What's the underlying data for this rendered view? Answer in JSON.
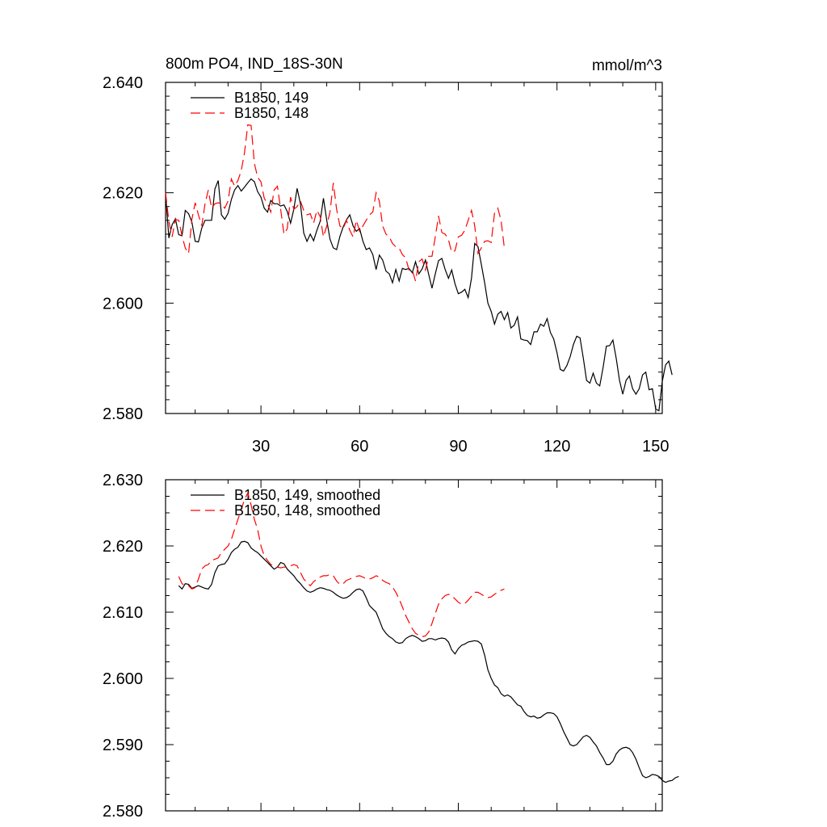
{
  "chart_data": [
    {
      "type": "line",
      "title": "800m PO4, IND_18S-30N",
      "units": "mmol/m^3",
      "xlim": [
        1,
        152
      ],
      "ylim": [
        2.58,
        2.64
      ],
      "xticks": [
        30,
        60,
        90,
        120,
        150
      ],
      "xticklabels": [
        "30",
        "60",
        "90",
        "120",
        "150"
      ],
      "yticks": [
        2.58,
        2.6,
        2.62,
        2.64
      ],
      "yticklabels": [
        "2.580",
        "2.600",
        "2.620",
        "2.640"
      ],
      "grid": false,
      "legend": "top-left",
      "colors": {
        "s149": "#000000",
        "s148": "#ff0000"
      },
      "series": [
        {
          "name": "B1850, 149",
          "x_start": 1,
          "values": [
            2.6198,
            2.6118,
            2.6142,
            2.6153,
            2.6124,
            2.6122,
            2.6168,
            2.6162,
            2.6147,
            2.6112,
            2.6111,
            2.6136,
            2.615,
            2.615,
            2.615,
            2.6207,
            2.6222,
            2.616,
            2.6152,
            2.6163,
            2.6188,
            2.6205,
            2.6213,
            2.6203,
            2.621,
            2.6218,
            2.6225,
            2.622,
            2.6202,
            2.6192,
            2.6172,
            2.6165,
            2.6186,
            2.618,
            2.618,
            2.6176,
            2.6178,
            2.6166,
            2.6145,
            2.617,
            2.6208,
            2.618,
            2.6127,
            2.6112,
            2.6125,
            2.6113,
            2.6132,
            2.6148,
            2.619,
            2.615,
            2.6116,
            2.61,
            2.6097,
            2.6121,
            2.6138,
            2.6151,
            2.616,
            2.614,
            2.613,
            2.6135,
            2.6112,
            2.6097,
            2.61,
            2.6088,
            2.6061,
            2.6087,
            2.6078,
            2.6058,
            2.6053,
            2.6037,
            2.6061,
            2.604,
            2.6063,
            2.6061,
            2.6063,
            2.6055,
            2.6075,
            2.6053,
            2.6062,
            2.6078,
            2.6052,
            2.6027,
            2.6053,
            2.6077,
            2.6081,
            2.6061,
            2.6045,
            2.606,
            2.6035,
            2.6017,
            2.602,
            2.6025,
            2.601,
            2.6045,
            2.6108,
            2.6102,
            2.607,
            2.6037,
            2.6,
            2.5985,
            2.5962,
            2.598,
            2.5985,
            2.597,
            2.5983,
            2.5955,
            2.596,
            2.5975,
            2.5935,
            2.5933,
            2.5932,
            2.5925,
            2.5948,
            2.5948,
            2.5962,
            2.5958,
            2.5972,
            2.5947,
            2.5935,
            2.591,
            2.588,
            2.5877,
            2.5887,
            2.5903,
            2.5925,
            2.594,
            2.5937,
            2.59,
            2.586,
            2.5855,
            2.5873,
            2.5855,
            2.585,
            2.5883,
            2.5922,
            2.5923,
            2.5933,
            2.59,
            2.586,
            2.5835,
            2.586,
            2.5868,
            2.5845,
            2.5835,
            2.5845,
            2.587,
            2.5875,
            2.5843,
            2.5845,
            2.5808,
            2.5805,
            2.5858,
            2.5888,
            2.5895,
            2.587
          ]
        },
        {
          "name": "B1850, 148",
          "x_start": 1,
          "values": [
            2.62,
            2.6148,
            2.612,
            2.6152,
            2.615,
            2.6122,
            2.61,
            2.609,
            2.6152,
            2.6182,
            2.616,
            2.614,
            2.618,
            2.6205,
            2.6172,
            2.618,
            2.6182,
            2.618,
            2.6172,
            2.6185,
            2.6225,
            2.6212,
            2.6222,
            2.624,
            2.6272,
            2.6323,
            2.6322,
            2.6253,
            2.6228,
            2.622,
            2.619,
            2.618,
            2.6165,
            2.6205,
            2.6212,
            2.617,
            2.6125,
            2.6135,
            2.6192,
            2.617,
            2.6175,
            2.6185,
            2.6168,
            2.616,
            2.6162,
            2.6145,
            2.6168,
            2.6157,
            2.612,
            2.614,
            2.6165,
            2.6218,
            2.617,
            2.614,
            2.6135,
            2.615,
            2.6132,
            2.612,
            2.615,
            2.613,
            2.614,
            2.615,
            2.616,
            2.6165,
            2.62,
            2.6185,
            2.614,
            2.6125,
            2.612,
            2.6108,
            2.6102,
            2.61,
            2.6088,
            2.6082,
            2.606,
            2.606,
            2.604,
            2.6075,
            2.608,
            2.606,
            2.6085,
            2.6085,
            2.612,
            2.6158,
            2.6128,
            2.6125,
            2.6115,
            2.6092,
            2.6095,
            2.612,
            2.6123,
            2.6132,
            2.615,
            2.6168,
            2.614,
            2.609,
            2.61,
            2.6112,
            2.6113,
            2.611,
            2.6163,
            2.6172,
            2.615,
            2.61
          ]
        }
      ]
    },
    {
      "type": "line",
      "xlim": [
        1,
        152
      ],
      "ylim": [
        2.58,
        2.63
      ],
      "xticks": [
        30,
        60,
        90,
        120,
        150
      ],
      "yticks": [
        2.58,
        2.59,
        2.6,
        2.61,
        2.62,
        2.63
      ],
      "yticklabels": [
        "2.580",
        "2.590",
        "2.600",
        "2.610",
        "2.620",
        "2.630"
      ],
      "grid": false,
      "legend": "top-left",
      "colors": {
        "s149": "#000000",
        "s148": "#ff0000"
      },
      "series": [
        {
          "name": "B1850, 149, smoothed",
          "x_start": 5,
          "values": [
            2.614,
            2.6135,
            2.6143,
            2.6142,
            2.6136,
            2.6138,
            2.614,
            2.6138,
            2.6136,
            2.6135,
            2.6142,
            2.616,
            2.617,
            2.6172,
            2.6173,
            2.618,
            2.619,
            2.6195,
            2.6198,
            2.6206,
            2.6207,
            2.6205,
            2.6197,
            2.6193,
            2.619,
            2.6185,
            2.618,
            2.6175,
            2.617,
            2.6165,
            2.6168,
            2.6175,
            2.6173,
            2.6165,
            2.616,
            2.6155,
            2.6148,
            2.6143,
            2.6137,
            2.6132,
            2.613,
            2.6132,
            2.6135,
            2.6137,
            2.6136,
            2.6134,
            2.6133,
            2.613,
            2.6126,
            2.6123,
            2.6121,
            2.6122,
            2.6125,
            2.613,
            2.6134,
            2.6135,
            2.6132,
            2.6122,
            2.611,
            2.6105,
            2.61,
            2.6088,
            2.6075,
            2.6068,
            2.6063,
            2.606,
            2.6055,
            2.6053,
            2.6054,
            2.606,
            2.6063,
            2.6065,
            2.6063,
            2.606,
            2.6056,
            2.6057,
            2.606,
            2.606,
            2.6058,
            2.606,
            2.6061,
            2.606,
            2.6055,
            2.6043,
            2.6037,
            2.6045,
            2.605,
            2.6052,
            2.6055,
            2.6056,
            2.6057,
            2.6056,
            2.6052,
            2.6035,
            2.6013,
            2.6,
            2.599,
            2.5986,
            2.5977,
            2.5973,
            2.5975,
            2.5972,
            2.5966,
            2.596,
            2.5958,
            2.595,
            2.5944,
            2.5942,
            2.5943,
            2.594,
            2.5941,
            2.5945,
            2.5948,
            2.5948,
            2.5947,
            2.5942,
            2.5932,
            2.592,
            2.591,
            2.59,
            2.5898,
            2.59,
            2.5906,
            2.5912,
            2.5914,
            2.5911,
            2.5904,
            2.5898,
            2.5888,
            2.588,
            2.587,
            2.587,
            2.5875,
            2.5886,
            2.5892,
            2.5895,
            2.5896,
            2.5894,
            2.5888,
            2.5878,
            2.5865,
            2.5853,
            2.585,
            2.5852,
            2.5855,
            2.5854,
            2.5852,
            2.5846,
            2.5843,
            2.5845,
            2.5846,
            2.585,
            2.5852
          ]
        },
        {
          "name": "B1850, 148, smoothed",
          "x_start": 5,
          "values": [
            2.6154,
            2.6143,
            2.614,
            2.614,
            2.6135,
            2.6137,
            2.615,
            2.6165,
            2.617,
            2.6172,
            2.6178,
            2.618,
            2.6182,
            2.619,
            2.6195,
            2.62,
            2.621,
            2.6225,
            2.624,
            2.6255,
            2.627,
            2.628,
            2.6262,
            2.624,
            2.6225,
            2.62,
            2.6185,
            2.6178,
            2.6172,
            2.617,
            2.6168,
            2.6167,
            2.6168,
            2.6168,
            2.617,
            2.6172,
            2.617,
            2.616,
            2.615,
            2.6145,
            2.614,
            2.6146,
            2.615,
            2.6153,
            2.6155,
            2.6155,
            2.6157,
            2.6155,
            2.6147,
            2.6142,
            2.6143,
            2.6148,
            2.615,
            2.6152,
            2.6154,
            2.6155,
            2.6153,
            2.615,
            2.615,
            2.6152,
            2.6155,
            2.6153,
            2.6148,
            2.6145,
            2.6143,
            2.6138,
            2.613,
            2.612,
            2.6108,
            2.6095,
            2.6085,
            2.6075,
            2.6068,
            2.6065,
            2.6063,
            2.6064,
            2.607,
            2.6083,
            2.6098,
            2.6112,
            2.612,
            2.6125,
            2.6127,
            2.6125,
            2.612,
            2.6115,
            2.6112,
            2.6113,
            2.6118,
            2.6124,
            2.613,
            2.613,
            2.6127,
            2.6124,
            2.6122,
            2.6123,
            2.6127,
            2.613,
            2.6133,
            2.6135
          ]
        }
      ]
    }
  ]
}
